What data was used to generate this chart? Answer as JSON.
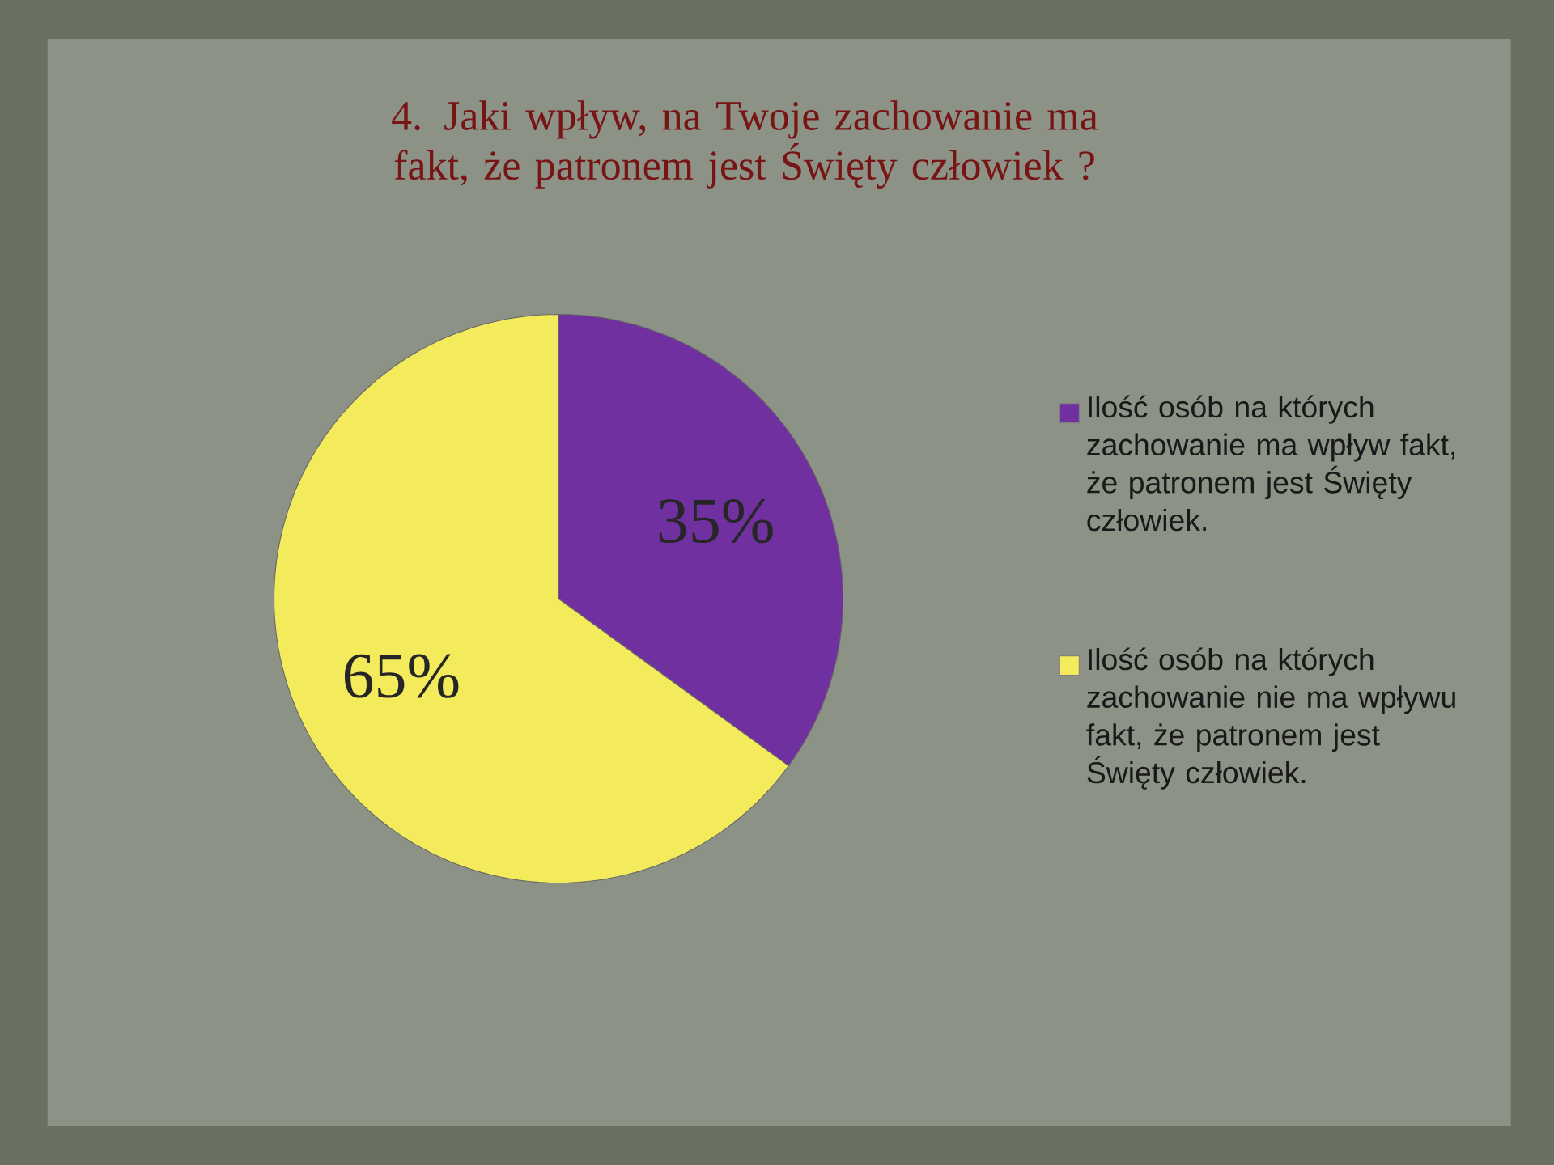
{
  "chart_data": {
    "type": "pie",
    "title": "4. Jaki wpływ, na Twoje zachowanie ma fakt, że patronem jest Święty człowiek ?",
    "categories": [
      "Ilość osób na których zachowanie ma wpływ fakt, że patronem jest Święty człowiek.",
      "Ilość osób na których zachowanie nie ma wpływu fakt, że patronem jest Święty człowiek."
    ],
    "values": [
      35,
      65
    ],
    "colors": [
      "#7030a0",
      "#f3ea5c"
    ],
    "value_labels": [
      "35%",
      "65%"
    ],
    "legend": "right"
  }
}
